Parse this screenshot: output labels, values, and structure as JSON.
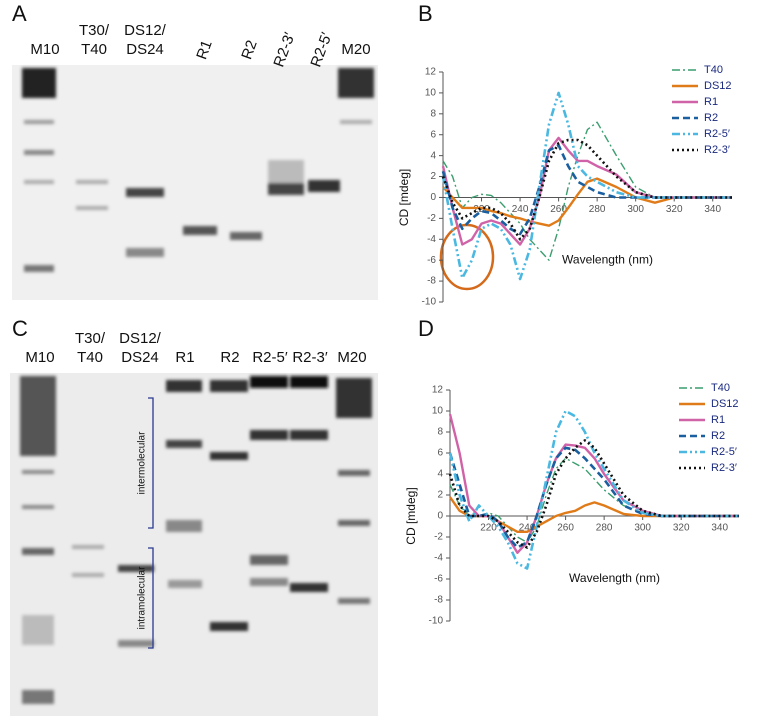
{
  "panel_labels": [
    "A",
    "B",
    "C",
    "D"
  ],
  "gels": [
    {
      "lanes": [
        [
          "M10"
        ],
        [
          "T30/",
          "T40"
        ],
        [
          "DS12/",
          "DS24"
        ],
        [
          "R1"
        ],
        [
          "R2"
        ],
        [
          "R2-3′"
        ],
        [
          "R2-5′"
        ],
        [
          "M20"
        ]
      ]
    },
    {
      "lanes": [
        [
          "M10"
        ],
        [
          "T30/",
          "T40"
        ],
        [
          "DS12/",
          "DS24"
        ],
        [
          "R1"
        ],
        [
          "R2"
        ],
        [
          "R2-5′"
        ],
        [
          "R2-3′"
        ],
        [
          "M20"
        ]
      ],
      "annotations": [
        "intermolecular",
        "intramolecular"
      ]
    }
  ],
  "chart_data": [
    {
      "type": "line",
      "ylabel": "CD [mdeg]",
      "xlabel": "Wavelength (nm)",
      "x": [
        200,
        205,
        210,
        215,
        220,
        225,
        230,
        235,
        240,
        245,
        250,
        255,
        260,
        265,
        270,
        275,
        280,
        290,
        300,
        310,
        320,
        330,
        340,
        350
      ],
      "xlim": [
        200,
        350
      ],
      "xticks": [
        220,
        240,
        260,
        280,
        300,
        320,
        340
      ],
      "ylim": [
        -10,
        12
      ],
      "yticks": [
        -10,
        -8,
        -6,
        -4,
        -2,
        0,
        2,
        4,
        6,
        8,
        10,
        12
      ],
      "series": [
        {
          "name": "T40",
          "color": "#3a9e6e",
          "style": "dash-dot",
          "values": [
            3.5,
            2,
            -1,
            0,
            0.3,
            0.2,
            -0.5,
            -1.5,
            -2.5,
            -4,
            -5,
            -6,
            -3,
            1,
            4,
            6.5,
            7.2,
            4,
            1,
            0,
            0,
            0,
            0,
            0
          ]
        },
        {
          "name": "DS12",
          "color": "#e07b1a",
          "style": "solid",
          "values": [
            1,
            0,
            -1,
            -1,
            -1,
            -1.3,
            -1.5,
            -1.8,
            -2,
            -2.3,
            -2.5,
            -2.7,
            -2.2,
            -1,
            0.3,
            1.5,
            1.8,
            1,
            0,
            -0.5,
            0,
            0,
            0,
            0
          ]
        },
        {
          "name": "R1",
          "color": "#d063a8",
          "style": "solid",
          "values": [
            3,
            -1,
            -4.5,
            -4,
            -2.5,
            -2.2,
            -2.5,
            -3.5,
            -4.5,
            -3,
            0,
            4.5,
            5.7,
            4.5,
            3.5,
            3.5,
            3,
            2.2,
            0.5,
            0,
            0,
            0,
            0,
            0
          ]
        },
        {
          "name": "R2",
          "color": "#1a5fa0",
          "style": "dashed",
          "values": [
            2.5,
            -1,
            -3,
            -2,
            -1.3,
            -1.5,
            -2.2,
            -3,
            -3.5,
            -2,
            1,
            4.5,
            5,
            3,
            1.5,
            1,
            0.5,
            0,
            0,
            0,
            0,
            0,
            0,
            0
          ]
        },
        {
          "name": "R2-5′",
          "color": "#4ab8e0",
          "style": "dash-dot-dot",
          "values": [
            2,
            -3,
            -7.7,
            -6,
            -3,
            -2.5,
            -3,
            -4.5,
            -7.8,
            -5,
            1,
            7,
            10,
            7,
            3,
            2,
            1.5,
            0.5,
            0,
            0,
            0,
            0,
            0,
            0
          ]
        },
        {
          "name": "R2-3′",
          "color": "#111111",
          "style": "dotted",
          "values": [
            2,
            -0.5,
            -2,
            -1.5,
            -1,
            -1,
            -1.5,
            -2.5,
            -4,
            -3,
            0,
            3.5,
            5.2,
            5.5,
            5.5,
            5,
            4,
            2,
            0.5,
            0,
            0,
            0,
            0,
            0
          ]
        }
      ]
    },
    {
      "type": "line",
      "ylabel": "CD [mdeg]",
      "xlabel": "Wavelength (nm)",
      "x": [
        200,
        205,
        210,
        215,
        220,
        225,
        230,
        235,
        240,
        245,
        250,
        255,
        260,
        265,
        270,
        275,
        280,
        290,
        300,
        310,
        320,
        330,
        340,
        350
      ],
      "xlim": [
        200,
        350
      ],
      "xticks": [
        220,
        240,
        260,
        280,
        300,
        320,
        340
      ],
      "ylim": [
        -10,
        12
      ],
      "yticks": [
        -10,
        -8,
        -6,
        -4,
        -2,
        0,
        2,
        4,
        6,
        8,
        10,
        12
      ],
      "series": [
        {
          "name": "T40",
          "color": "#3a9e6e",
          "style": "dash-dot",
          "values": [
            3,
            1,
            0,
            0,
            0.3,
            0,
            -1,
            -2,
            -2.5,
            -1,
            2,
            4.5,
            5.5,
            5,
            4.5,
            3.5,
            2.5,
            1,
            0.3,
            0,
            0,
            0,
            0,
            0
          ]
        },
        {
          "name": "DS12",
          "color": "#e07b1a",
          "style": "solid",
          "values": [
            1.8,
            0.5,
            0,
            0,
            0,
            -0.5,
            -1,
            -1.5,
            -1.5,
            -1,
            -0.5,
            0,
            0.3,
            0.5,
            1,
            1.3,
            1,
            0.2,
            0,
            0,
            0,
            0,
            0,
            0
          ]
        },
        {
          "name": "R1",
          "color": "#d063a8",
          "style": "solid",
          "values": [
            9.7,
            6,
            1,
            0,
            0,
            -0.5,
            -2,
            -3.5,
            -2.5,
            0,
            3,
            5.5,
            6.8,
            6.7,
            6.5,
            5.5,
            4,
            1.5,
            0.5,
            0,
            0,
            0,
            0,
            0
          ]
        },
        {
          "name": "R2",
          "color": "#1a5fa0",
          "style": "dashed",
          "values": [
            6,
            3,
            0,
            0,
            0.2,
            -0.5,
            -2,
            -3,
            -2.5,
            0,
            3,
            5.5,
            6.5,
            6.3,
            5.5,
            4.5,
            3.5,
            1,
            0.2,
            0,
            0,
            0,
            0,
            0
          ]
        },
        {
          "name": "R2-5′",
          "color": "#4ab8e0",
          "style": "dash-dot-dot",
          "values": [
            6,
            2,
            -0.5,
            1,
            0,
            -1,
            -2.5,
            -4.5,
            -5,
            -1,
            3.5,
            8,
            10,
            9.5,
            8,
            6,
            4.5,
            1.5,
            0.3,
            0,
            0,
            0,
            0,
            0
          ]
        },
        {
          "name": "R2-3′",
          "color": "#111111",
          "style": "dotted",
          "values": [
            4,
            1,
            0,
            0,
            0,
            -0.5,
            -1.5,
            -2.5,
            -3,
            -1.5,
            1,
            4,
            5.5,
            6.5,
            7.2,
            6.5,
            5,
            2,
            0.5,
            0,
            0,
            0,
            0,
            0
          ]
        }
      ]
    }
  ]
}
